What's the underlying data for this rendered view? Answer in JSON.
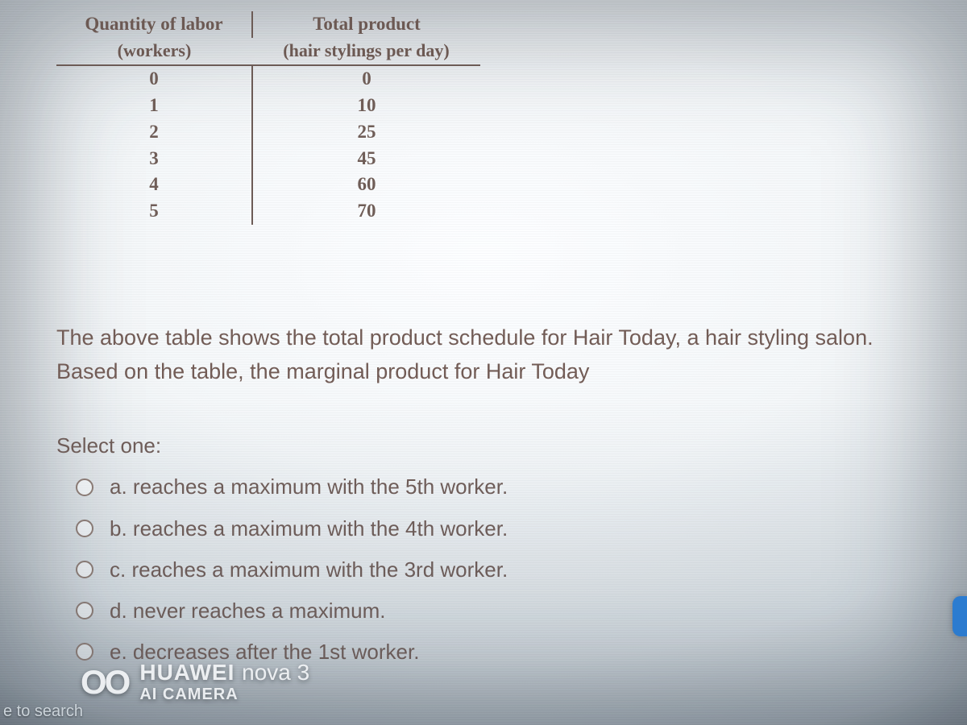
{
  "table": {
    "header": {
      "left_main": "Quantity of labor",
      "left_sub": "(workers)",
      "right_main": "Total product",
      "right_sub": "(hair stylings per day)"
    },
    "rows": [
      {
        "labor": "0",
        "total": "0"
      },
      {
        "labor": "1",
        "total": "10"
      },
      {
        "labor": "2",
        "total": "25"
      },
      {
        "labor": "3",
        "total": "45"
      },
      {
        "labor": "4",
        "total": "60"
      },
      {
        "labor": "5",
        "total": "70"
      }
    ],
    "border_color": "#6a5a55",
    "text_color": "#6b5a54",
    "font_family": "Georgia, 'Times New Roman', serif"
  },
  "question": {
    "text_line1": "The above table shows the total product schedule for Hair Today, a hair styling salon.",
    "text_line2": "Based on the table, the marginal product for Hair Today",
    "select_label": "Select one:"
  },
  "options": {
    "a": "a. reaches a maximum with the 5th worker.",
    "b": "b. reaches a maximum with the 4th worker.",
    "c": "c. reaches a maximum with the 3rd worker.",
    "d": "d. never reaches a maximum.",
    "e": "e. decreases after the 1st worker."
  },
  "watermark": {
    "oo": "OO",
    "brand_prefix": "HUAWEI ",
    "brand_model_html": "nova 3",
    "line2": "AI CAMERA"
  },
  "crop": {
    "bottom_left": "e to search"
  },
  "palette": {
    "page_bg_center": "#f6f7f9",
    "page_bg_edge": "#8b9298",
    "text_main": "#6f5d58",
    "radio_border": "#8a7a73",
    "watermark_text": "#ffffff",
    "right_sliver": "#2d7fd6"
  }
}
